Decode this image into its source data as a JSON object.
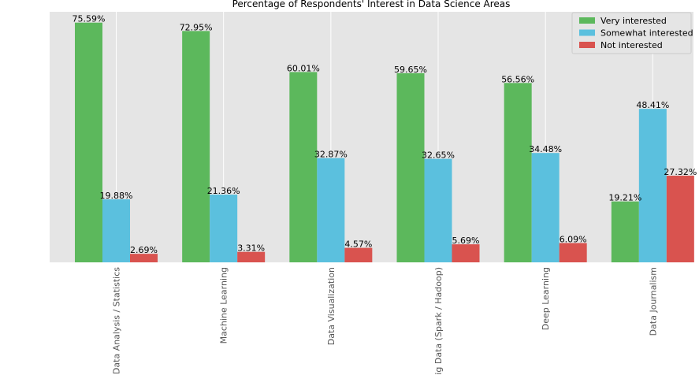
{
  "chart_data": {
    "type": "bar",
    "title": "Percentage of Respondents' Interest in Data Science Areas",
    "xlabel": "",
    "ylabel": "",
    "categories": [
      "Data Analysis / Statistics",
      "Machine Learning",
      "Data Visualization",
      "Big Data (Spark / Hadoop)",
      "Deep Learning",
      "Data Journalism"
    ],
    "series": [
      {
        "name": "Very interested",
        "color": "#5cb85c",
        "values": [
          75.59,
          72.95,
          60.01,
          59.65,
          56.56,
          19.21
        ],
        "labels": [
          "75.59%",
          "72.95%",
          "60.01%",
          "59.65%",
          "56.56%",
          "19.21%"
        ]
      },
      {
        "name": "Somewhat interested",
        "color": "#5bc0de",
        "values": [
          19.88,
          21.36,
          32.87,
          32.65,
          34.48,
          48.41
        ],
        "labels": [
          "19.88%",
          "21.36%",
          "32.87%",
          "32.65%",
          "34.48%",
          "48.41%"
        ]
      },
      {
        "name": "Not interested",
        "color": "#d9534f",
        "values": [
          2.69,
          3.31,
          4.57,
          5.69,
          6.09,
          27.32
        ],
        "labels": [
          "2.69%",
          "3.31%",
          "4.57%",
          "5.69%",
          "6.09%",
          "27.32%"
        ]
      }
    ],
    "ylim": [
      0,
      79
    ],
    "y_axis_visible": false,
    "grid": true,
    "legend": "top-right"
  }
}
